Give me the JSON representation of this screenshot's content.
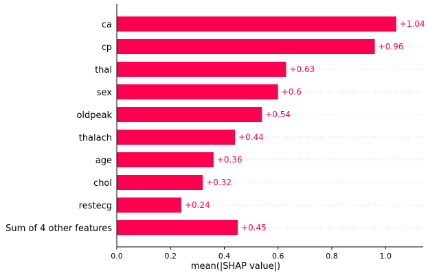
{
  "chart_data": {
    "type": "bar",
    "orientation": "horizontal",
    "categories": [
      "ca",
      "cp",
      "thal",
      "sex",
      "oldpeak",
      "thalach",
      "age",
      "chol",
      "restecg",
      "Sum of 4 other features"
    ],
    "values": [
      1.04,
      0.96,
      0.63,
      0.6,
      0.54,
      0.44,
      0.36,
      0.32,
      0.24,
      0.45
    ],
    "value_labels": [
      "+1.04",
      "+0.96",
      "+0.63",
      "+0.6",
      "+0.54",
      "+0.44",
      "+0.36",
      "+0.32",
      "+0.24",
      "+0.45"
    ],
    "title": "",
    "xlabel": "mean(|SHAP value|)",
    "ylabel": "",
    "xlim": [
      0,
      1.14
    ],
    "xticks": [
      0.0,
      0.2,
      0.4,
      0.6,
      0.8,
      1.0
    ],
    "xtick_labels": [
      "0.0",
      "0.2",
      "0.4",
      "0.6",
      "0.8",
      "1.0"
    ],
    "grid": "dotted horizontal lines per row",
    "legend": "none",
    "colors": {
      "bar": "#ff0051",
      "value_label": "#ff0051",
      "axis": "#000000",
      "grid": "#cccccc"
    }
  }
}
